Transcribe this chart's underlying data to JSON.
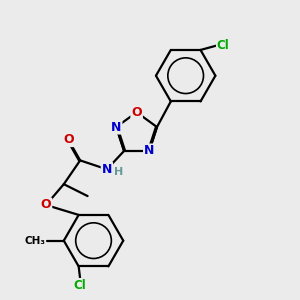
{
  "bg_color": "#ebebeb",
  "bond_color": "#000000",
  "n_color": "#0000cc",
  "o_color": "#cc0000",
  "cl_color": "#00aa00",
  "h_color": "#669999",
  "line_width": 1.6,
  "dbo": 0.035,
  "xlim": [
    0,
    10
  ],
  "ylim": [
    0,
    10
  ]
}
